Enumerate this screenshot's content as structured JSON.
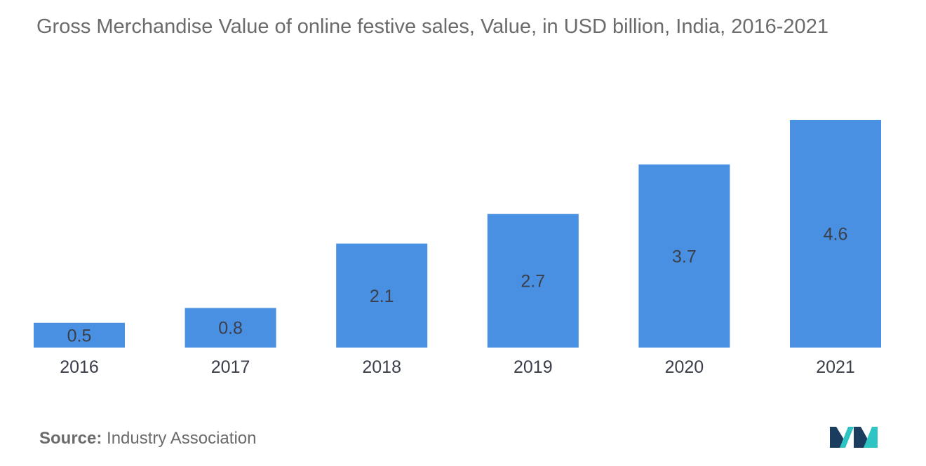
{
  "header": {
    "title": "Gross Merchandise Value of online festive sales, Value, in USD billion, India, 2016-2021"
  },
  "source": {
    "label": "Source:",
    "text": "Industry Association"
  },
  "logo": {
    "icon": "mordor-intelligence-logo-icon",
    "colors": [
      "#1a3c5e",
      "#2ec4c4"
    ]
  },
  "chart_data": {
    "type": "bar",
    "categories": [
      "2016",
      "2017",
      "2018",
      "2019",
      "2020",
      "2021"
    ],
    "values": [
      0.5,
      0.8,
      2.1,
      2.7,
      3.7,
      4.6
    ],
    "value_labels": [
      "0.5",
      "0.8",
      "2.1",
      "2.7",
      "3.7",
      "4.6"
    ],
    "title": "Gross Merchandise Value of online festive sales, Value, in USD billion, India, 2016-2021",
    "xlabel": "",
    "ylabel": "",
    "ylim": [
      0,
      4.6
    ],
    "grid": false,
    "legend": "none",
    "bar_color": "#4a90e2"
  }
}
